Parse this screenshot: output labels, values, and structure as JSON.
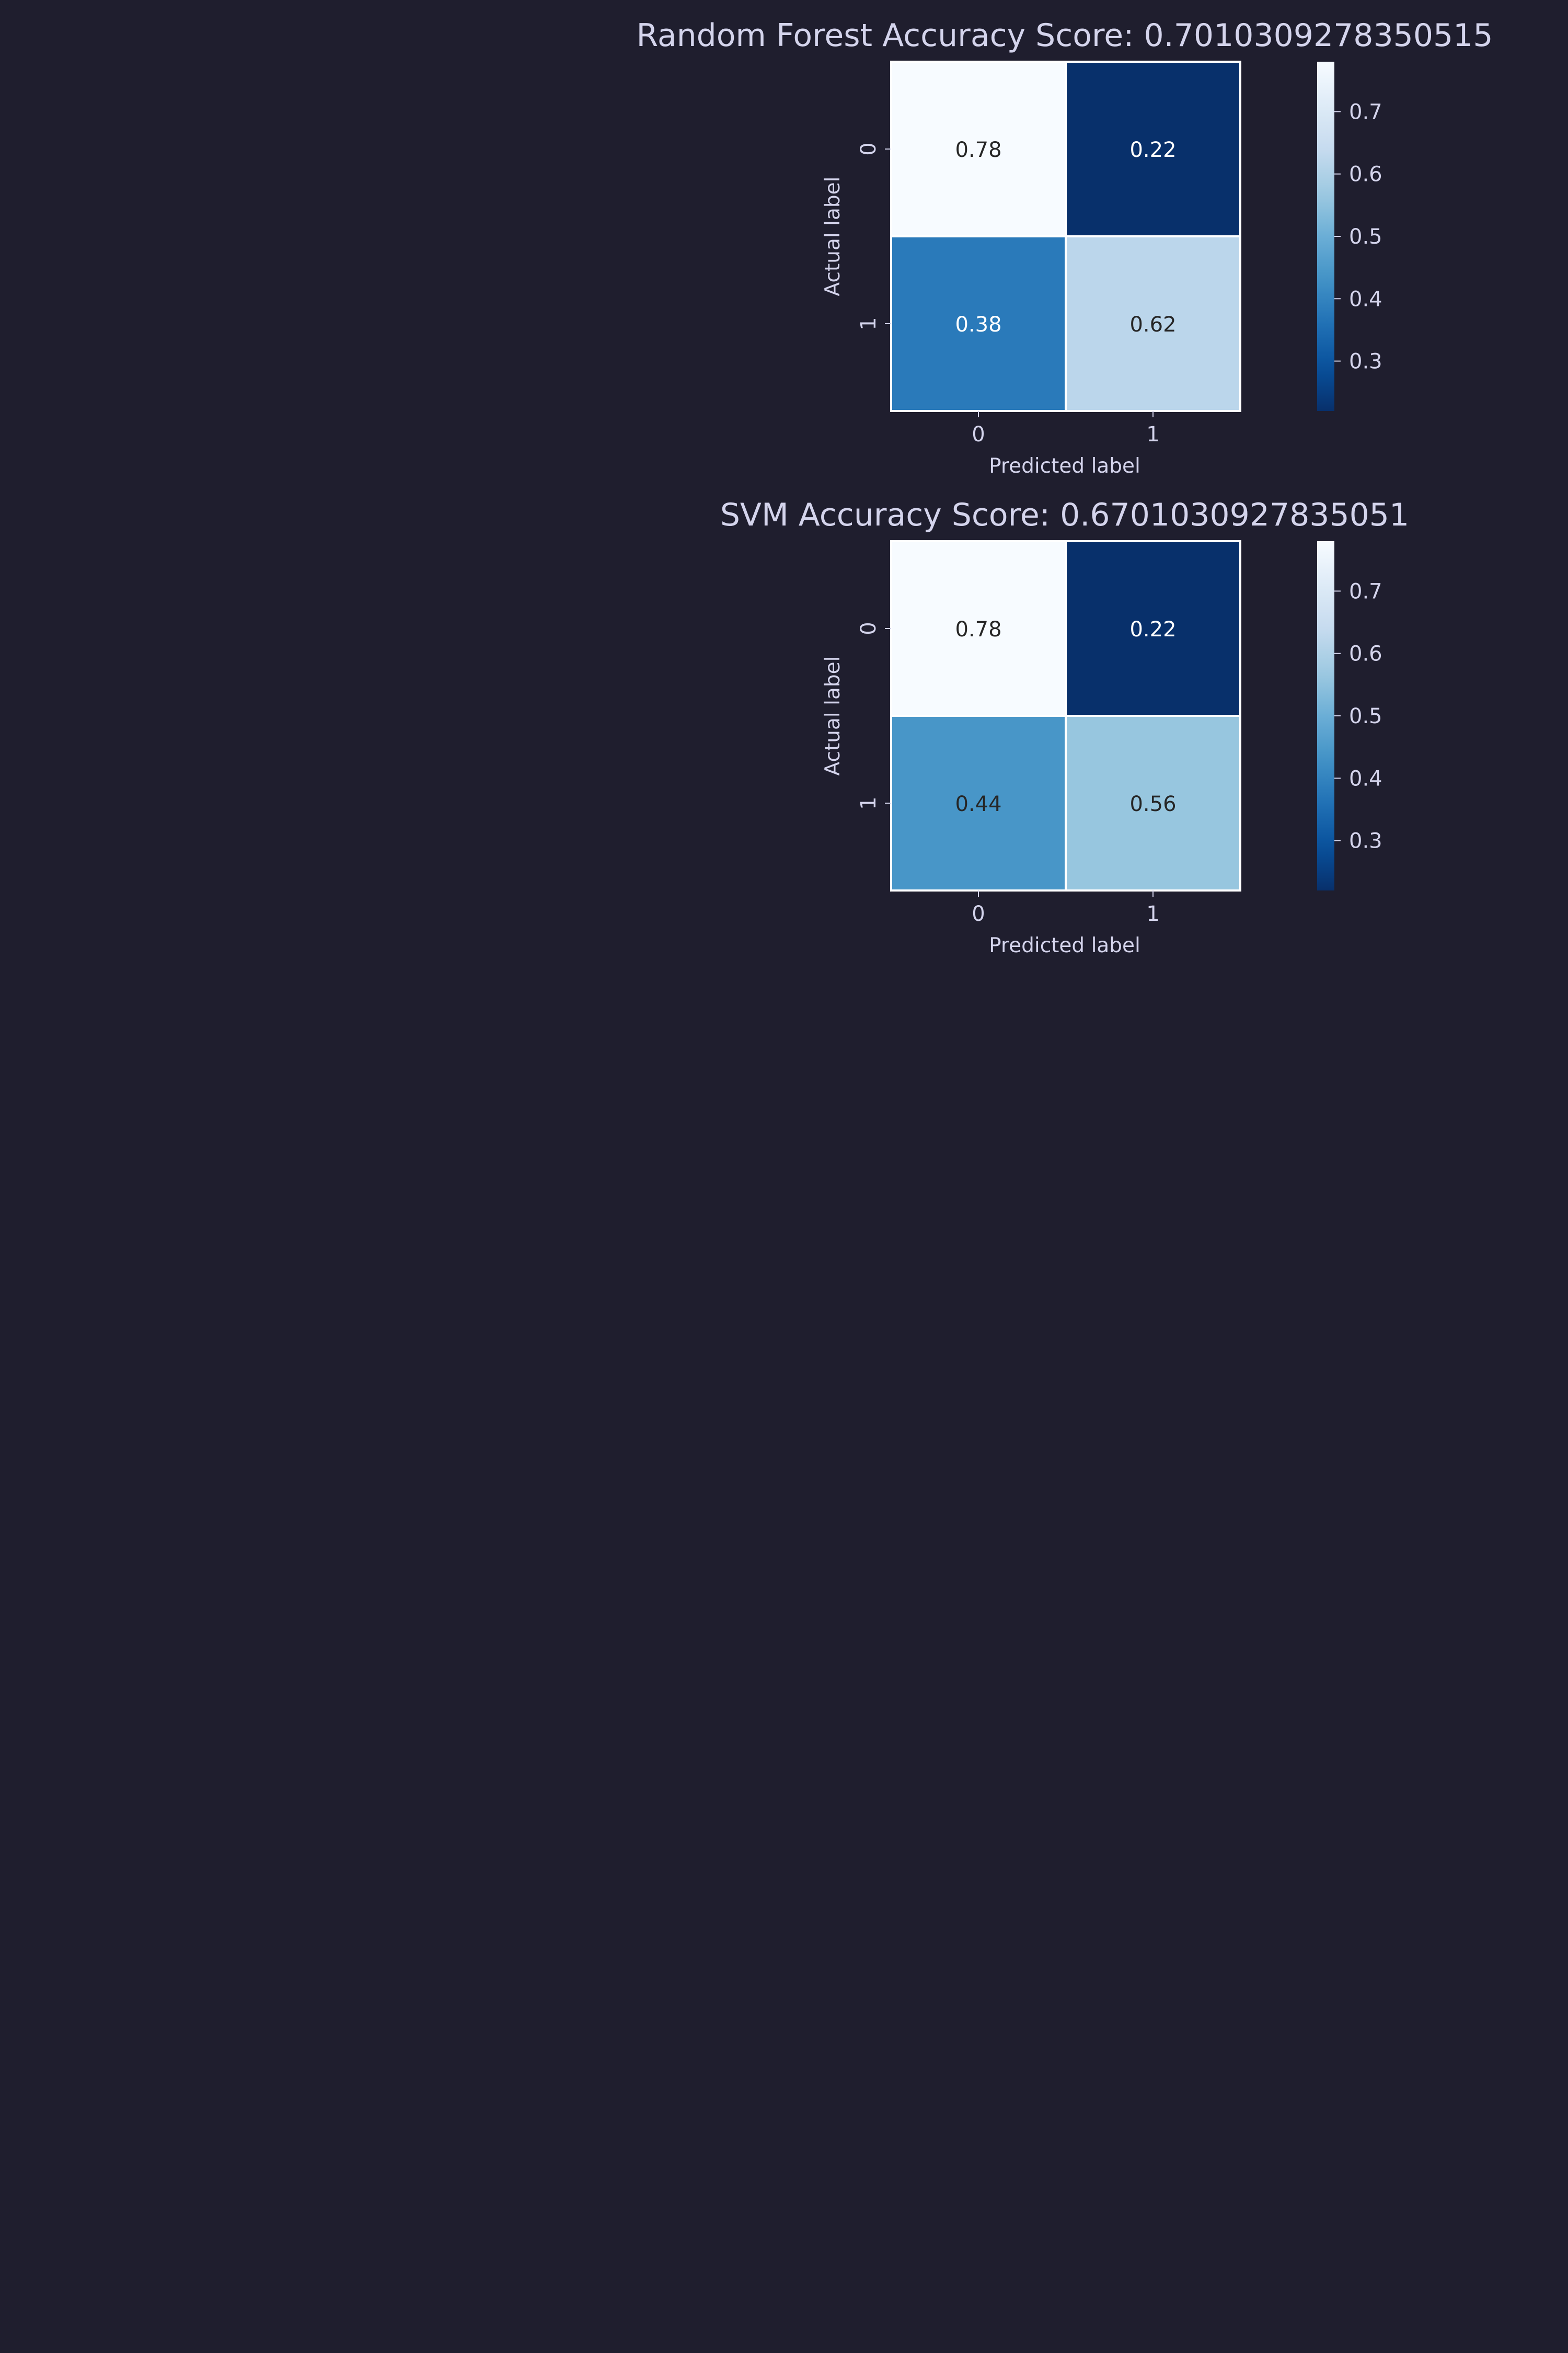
{
  "figure": {
    "background": "#1f1e2e",
    "text_color": "#d4d4ec",
    "cell_border_color": "#ffffff",
    "colormap": "Blues"
  },
  "chart_data": [
    {
      "type": "heatmap",
      "title": "Random Forest Accuracy Score: 0.7010309278350515",
      "xlabel": "Predicted label",
      "ylabel": "Actual label",
      "x_categories": [
        "0",
        "1"
      ],
      "y_categories": [
        "0",
        "1"
      ],
      "values": [
        [
          0.78,
          0.22
        ],
        [
          0.38,
          0.62
        ]
      ],
      "cell_labels": [
        [
          "0.78",
          "0.22"
        ],
        [
          "0.38",
          "0.62"
        ]
      ],
      "colorbar": {
        "min": 0.22,
        "max": 0.78,
        "ticks": [
          0.3,
          0.4,
          0.5,
          0.6,
          0.7
        ],
        "tick_labels": [
          "0.3",
          "0.4",
          "0.5",
          "0.6",
          "0.7"
        ]
      }
    },
    {
      "type": "heatmap",
      "title": "SVM Accuracy Score: 0.6701030927835051",
      "xlabel": "Predicted label",
      "ylabel": "Actual label",
      "x_categories": [
        "0",
        "1"
      ],
      "y_categories": [
        "0",
        "1"
      ],
      "values": [
        [
          0.78,
          0.22
        ],
        [
          0.44,
          0.56
        ]
      ],
      "cell_labels": [
        [
          "0.78",
          "0.22"
        ],
        [
          "0.44",
          "0.56"
        ]
      ],
      "colorbar": {
        "min": 0.22,
        "max": 0.78,
        "ticks": [
          0.3,
          0.4,
          0.5,
          0.6,
          0.7
        ],
        "tick_labels": [
          "0.3",
          "0.4",
          "0.5",
          "0.6",
          "0.7"
        ]
      }
    }
  ]
}
